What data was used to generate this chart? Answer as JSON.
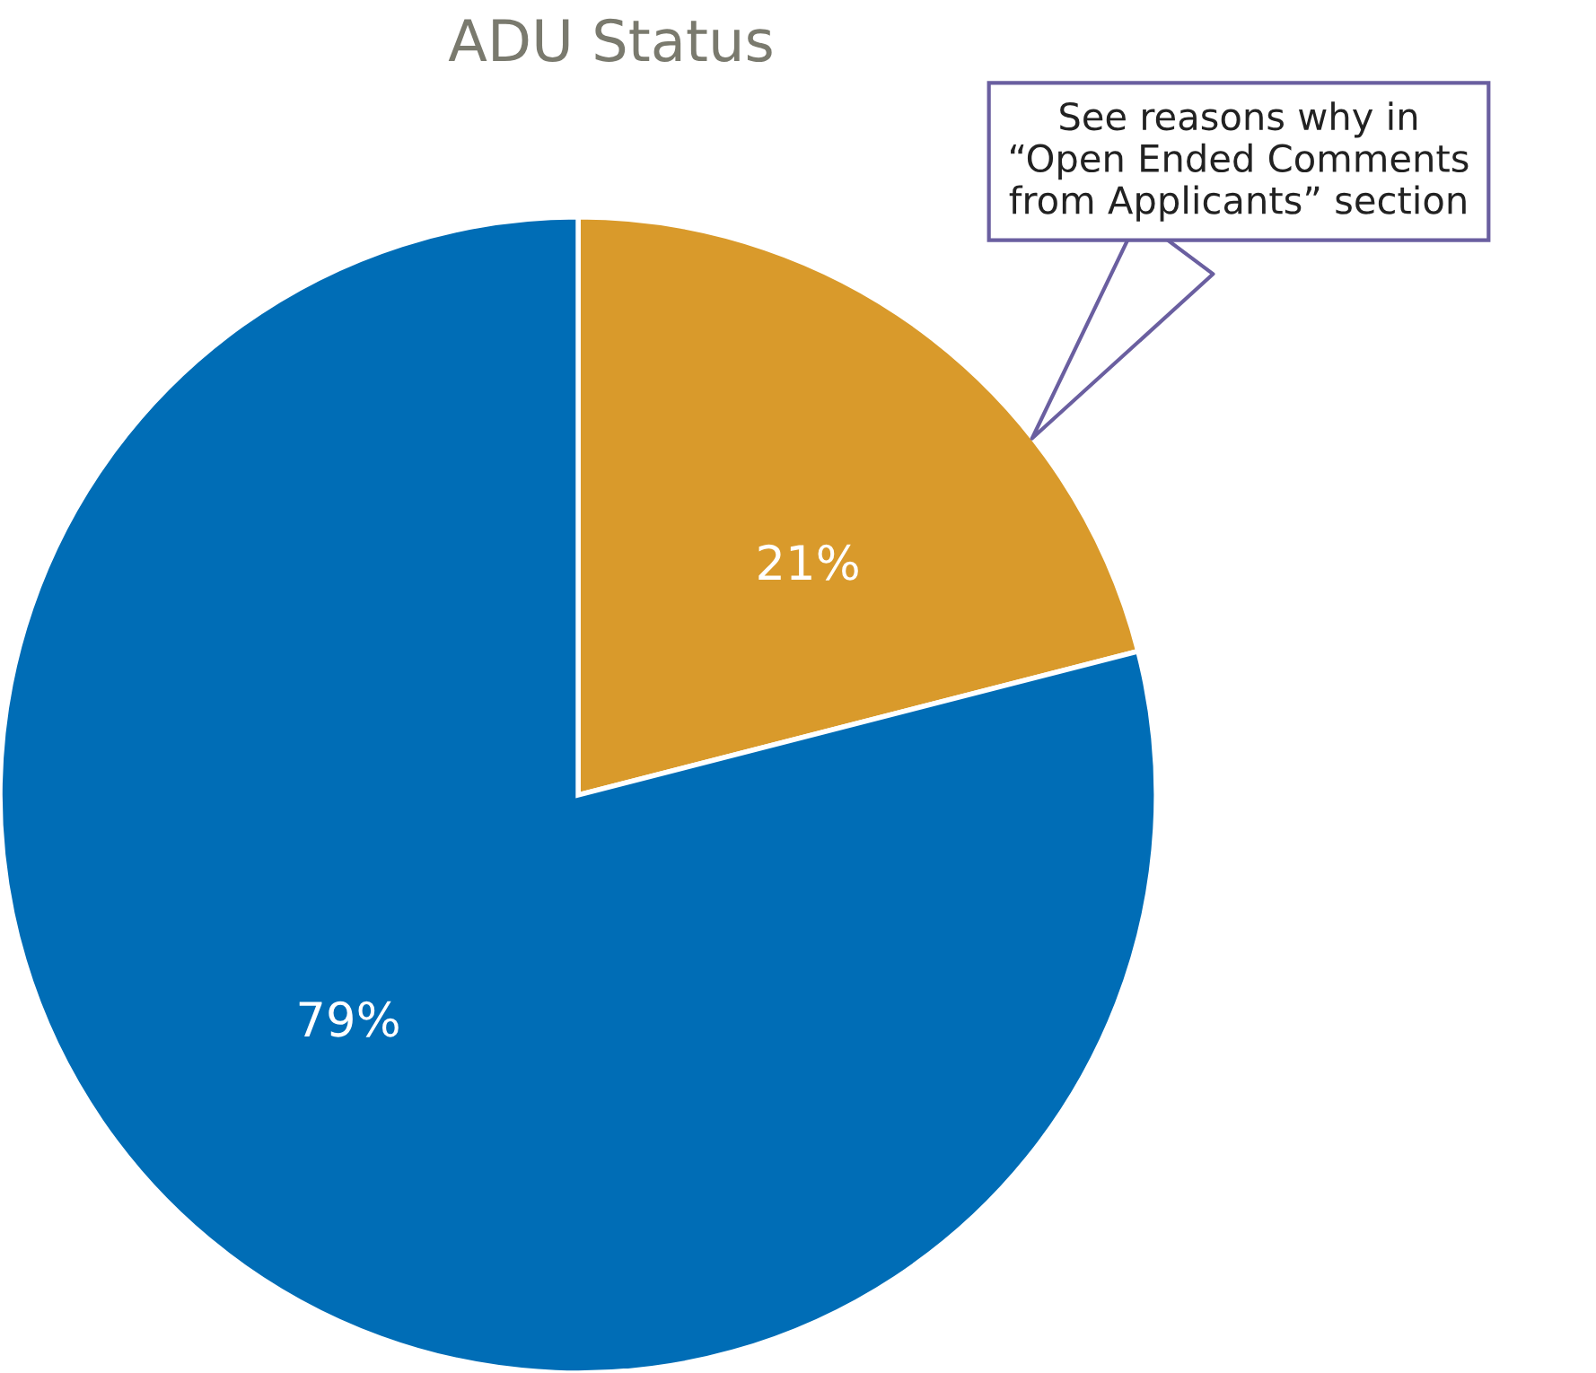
{
  "chart_data": {
    "type": "pie",
    "title": "ADU Status",
    "categories": [
      null,
      null
    ],
    "values": [
      21,
      79
    ],
    "value_labels": [
      "21%",
      "79%"
    ],
    "colors": [
      "#d99a2b",
      "#006db6"
    ],
    "annotations": [
      "See reasons why in\n“Open Ended Comments\nfrom Applicants” section"
    ]
  }
}
